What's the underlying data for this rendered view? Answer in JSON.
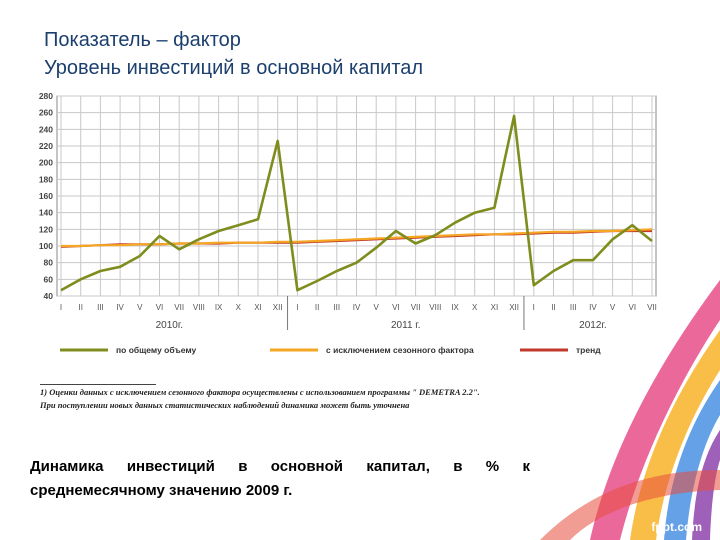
{
  "title": {
    "line1": "Показатель – фактор",
    "line2": "Уровень инвестиций в основной капитал"
  },
  "caption": {
    "line1": "Динамика инвестиций в основной капитал, в % к",
    "line2": "среднемесячному значению 2009 г."
  },
  "footnote": {
    "line1": "1) Оценки данных с исключением сезонного фактора осуществлены с использованием программы \" DEMETRA 2.2\".",
    "line2": "При поступлении новых данных статистических наблюдений динамика может быть уточнена"
  },
  "watermark": "fppt.com",
  "colors": {
    "total": "#7f8c1e",
    "seasonal": "#f5a623",
    "trend": "#c0392b",
    "grid": "#c8c8c8",
    "title": "#1c3f6e"
  },
  "chart_data": {
    "type": "line",
    "yticks": [
      "280",
      "260",
      "240",
      "220",
      "200",
      "180",
      "160",
      "140",
      "120",
      "100",
      "80",
      "60",
      "40"
    ],
    "ylim": [
      40,
      280
    ],
    "months": [
      "I",
      "II",
      "III",
      "IV",
      "V",
      "VI",
      "VII",
      "VIII",
      "IX",
      "X",
      "XI",
      "XII",
      "I",
      "II",
      "III",
      "IV",
      "V",
      "VI",
      "VII",
      "VIII",
      "IX",
      "X",
      "XI",
      "XII",
      "I",
      "II",
      "III",
      "IV",
      "V",
      "VI",
      "VII"
    ],
    "years": [
      {
        "label": "2010г.",
        "start": 0,
        "end": 11
      },
      {
        "label": "2011 г.",
        "start": 12,
        "end": 23
      },
      {
        "label": "2012г.",
        "start": 24,
        "end": 30
      }
    ],
    "series": [
      {
        "name": "по общему объему",
        "key": "total",
        "values": [
          47,
          60,
          70,
          75,
          88,
          112,
          96,
          108,
          118,
          125,
          132,
          226,
          47,
          58,
          70,
          80,
          98,
          118,
          103,
          113,
          128,
          140,
          146,
          256,
          53,
          70,
          83,
          83,
          108,
          125,
          106
        ]
      },
      {
        "name": "с исключением сезонного фактора",
        "key": "seasonal",
        "values": [
          100,
          100,
          101,
          101,
          102,
          102,
          103,
          103,
          104,
          104,
          104,
          105,
          105,
          106,
          107,
          108,
          109,
          110,
          111,
          112,
          113,
          114,
          114,
          115,
          116,
          117,
          117,
          118,
          118,
          119,
          120
        ]
      },
      {
        "name": "тренд",
        "key": "trend",
        "values": [
          99,
          100,
          101,
          102,
          102,
          102,
          103,
          103,
          103,
          104,
          104,
          104,
          104,
          105,
          106,
          107,
          108,
          109,
          110,
          111,
          112,
          113,
          114,
          114,
          115,
          116,
          116,
          117,
          118,
          118,
          118
        ]
      }
    ]
  }
}
